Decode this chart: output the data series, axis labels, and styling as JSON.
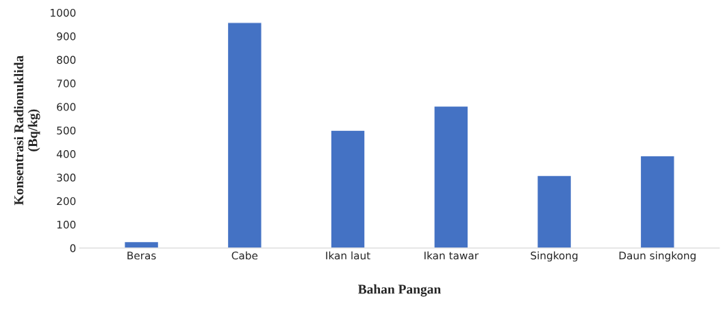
{
  "chart_data": {
    "type": "bar",
    "categories": [
      "Beras",
      "Cabe",
      "Ikan laut",
      "Ikan tawar",
      "Singkong",
      "Daun singkong"
    ],
    "values": [
      27,
      958,
      500,
      603,
      308,
      392
    ],
    "color": "#4472c4",
    "xlabel": "Bahan Pangan",
    "ylabel": "Konsentrasi Radionuklida\n(Bq/kg)",
    "ylim": [
      0,
      1000
    ],
    "yticks": [
      0,
      100,
      200,
      300,
      400,
      500,
      600,
      700,
      800,
      900,
      1000
    ],
    "grid": false
  }
}
